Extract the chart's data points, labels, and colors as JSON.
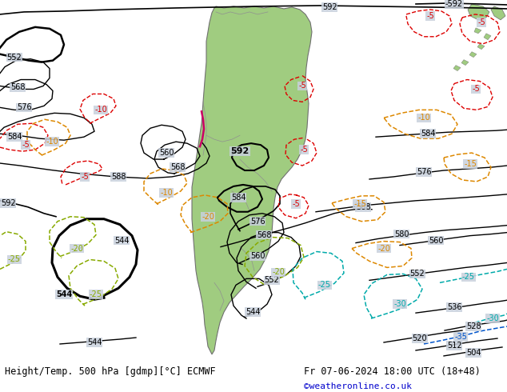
{
  "title_left": "Height/Temp. 500 hPa [gdmp][°C] ECMWF",
  "title_right": "Fr 07-06-2024 18:00 UTC (18+48)",
  "credit": "©weatheronline.co.uk",
  "bg_color": "#c8d0dc",
  "land_color": "#a0cc80",
  "border_color": "#808080",
  "fig_width": 6.34,
  "fig_height": 4.9,
  "dpi": 100
}
